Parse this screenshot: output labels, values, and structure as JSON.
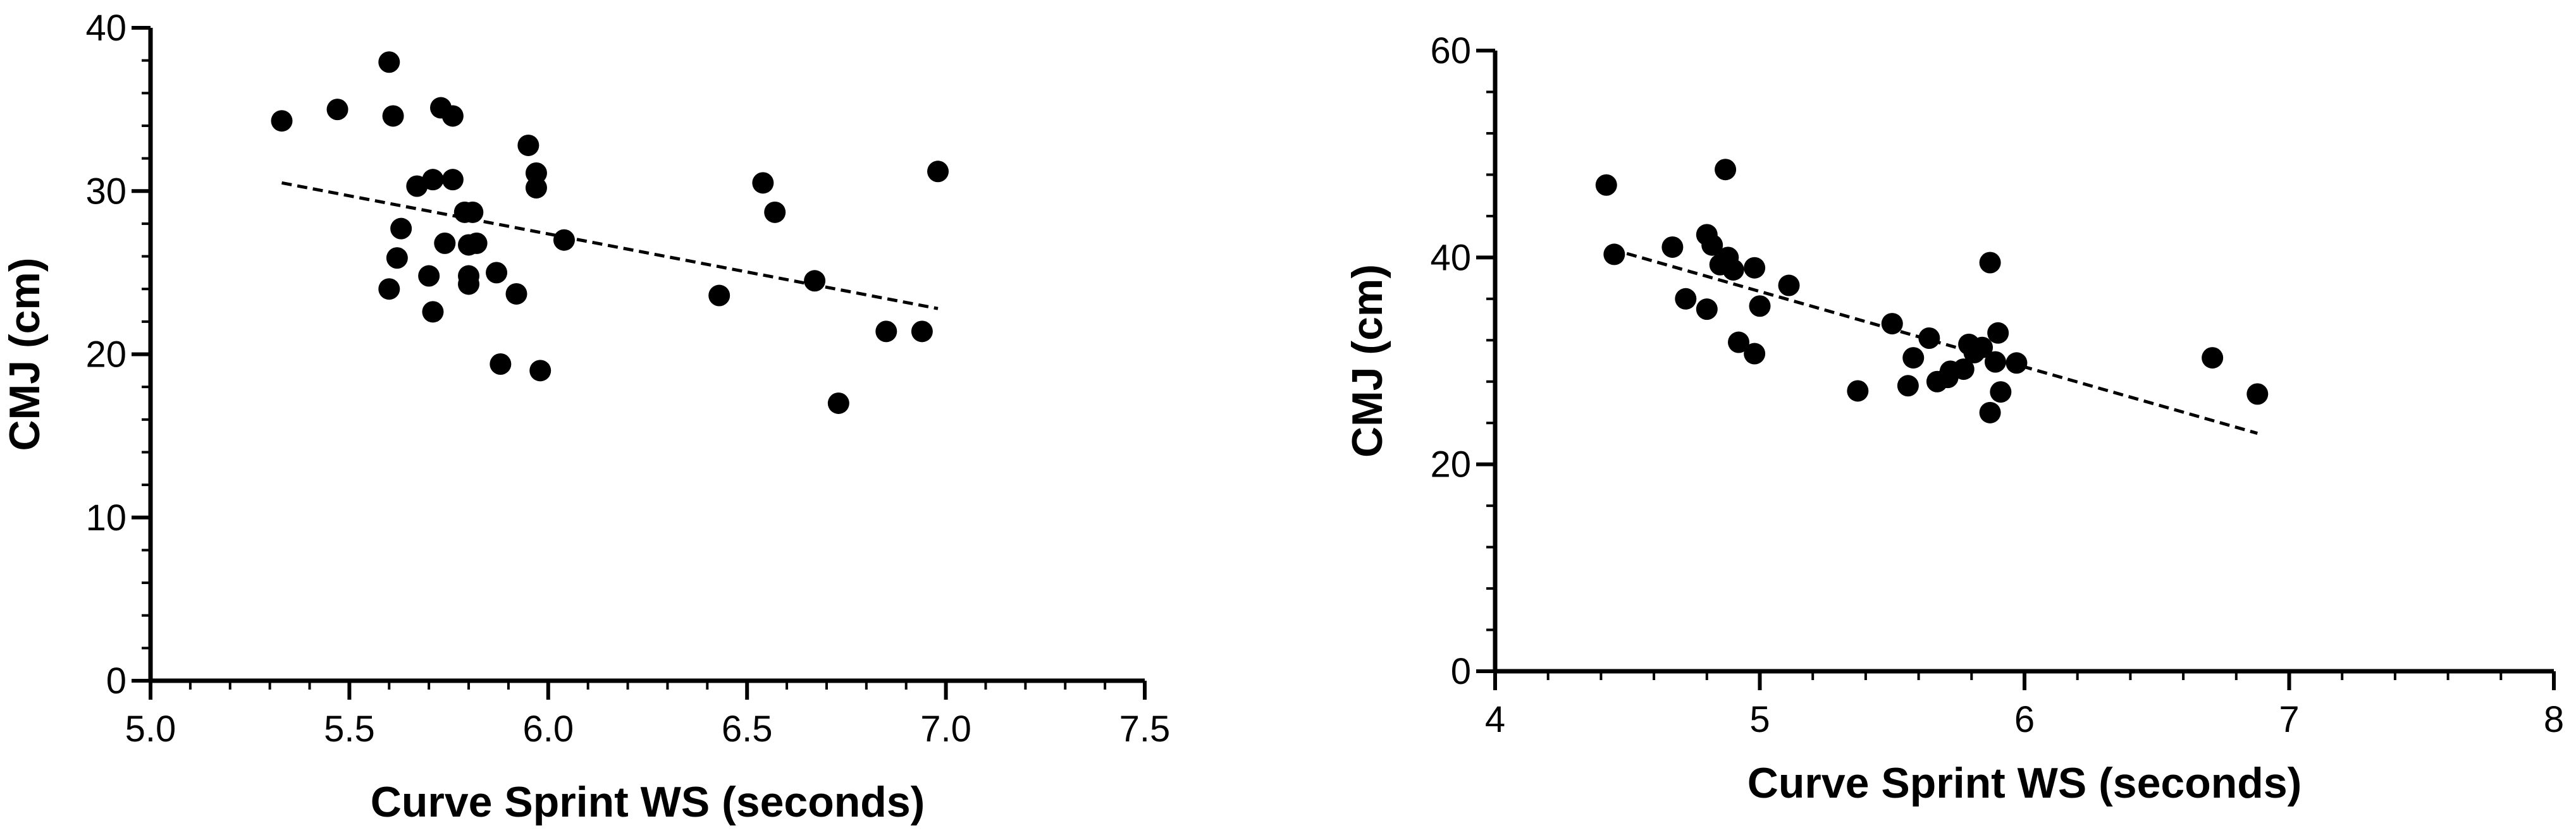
{
  "chart_data": [
    {
      "type": "scatter",
      "xlabel": "Curve Sprint WS (seconds)",
      "ylabel": "CMJ (cm)",
      "xlim": [
        5.0,
        7.5
      ],
      "ylim": [
        0,
        40
      ],
      "xticks": [
        "5.0",
        "5.5",
        "6.0",
        "6.5",
        "7.0",
        "7.5"
      ],
      "yticks": [
        "0",
        "10",
        "20",
        "30",
        "40"
      ],
      "x_minor_step": 0.1,
      "y_minor_step": 2,
      "grid": false,
      "trendline": {
        "style": "dashed",
        "x": [
          5.33,
          6.98
        ],
        "y": [
          30.5,
          22.8
        ]
      },
      "points": [
        [
          5.33,
          34.3
        ],
        [
          5.47,
          35.0
        ],
        [
          5.6,
          37.9
        ],
        [
          5.61,
          34.6
        ],
        [
          5.73,
          35.1
        ],
        [
          5.76,
          34.6
        ],
        [
          5.95,
          32.8
        ],
        [
          5.97,
          31.1
        ],
        [
          5.97,
          30.2
        ],
        [
          5.67,
          30.3
        ],
        [
          5.71,
          30.7
        ],
        [
          5.76,
          30.7
        ],
        [
          5.79,
          28.7
        ],
        [
          5.81,
          28.7
        ],
        [
          5.63,
          27.7
        ],
        [
          5.74,
          26.8
        ],
        [
          5.8,
          26.7
        ],
        [
          5.82,
          26.8
        ],
        [
          6.04,
          27.0
        ],
        [
          5.62,
          25.9
        ],
        [
          5.7,
          24.8
        ],
        [
          5.8,
          24.8
        ],
        [
          5.8,
          24.3
        ],
        [
          5.87,
          25.0
        ],
        [
          5.92,
          23.7
        ],
        [
          5.6,
          24.0
        ],
        [
          5.71,
          22.6
        ],
        [
          5.88,
          19.4
        ],
        [
          5.98,
          19.0
        ],
        [
          6.54,
          30.5
        ],
        [
          6.57,
          28.7
        ],
        [
          6.43,
          23.6
        ],
        [
          6.67,
          24.5
        ],
        [
          6.73,
          17.0
        ],
        [
          6.85,
          21.4
        ],
        [
          6.94,
          21.4
        ],
        [
          6.98,
          31.2
        ]
      ]
    },
    {
      "type": "scatter",
      "xlabel": "Curve Sprint WS (seconds)",
      "ylabel": "CMJ (cm)",
      "xlim": [
        4,
        8
      ],
      "ylim": [
        0,
        60
      ],
      "xticks": [
        "4",
        "5",
        "6",
        "7",
        "8"
      ],
      "yticks": [
        "0",
        "20",
        "40",
        "60"
      ],
      "x_minor_step": 0.2,
      "y_minor_step": 4,
      "grid": false,
      "trendline": {
        "style": "dashed",
        "x": [
          4.44,
          6.88
        ],
        "y": [
          40.8,
          23.0
        ]
      },
      "points": [
        [
          4.42,
          47.0
        ],
        [
          4.45,
          40.3
        ],
        [
          4.67,
          41.0
        ],
        [
          4.72,
          36.0
        ],
        [
          4.8,
          35.0
        ],
        [
          4.8,
          42.2
        ],
        [
          4.82,
          41.2
        ],
        [
          4.85,
          39.3
        ],
        [
          4.87,
          48.5
        ],
        [
          4.88,
          40.0
        ],
        [
          4.9,
          38.8
        ],
        [
          4.92,
          31.8
        ],
        [
          4.98,
          39.0
        ],
        [
          4.98,
          30.7
        ],
        [
          5.0,
          35.3
        ],
        [
          5.11,
          37.3
        ],
        [
          5.37,
          27.1
        ],
        [
          5.5,
          33.6
        ],
        [
          5.56,
          27.6
        ],
        [
          5.58,
          30.3
        ],
        [
          5.64,
          32.2
        ],
        [
          5.67,
          28.0
        ],
        [
          5.71,
          28.4
        ],
        [
          5.72,
          29.0
        ],
        [
          5.77,
          29.2
        ],
        [
          5.79,
          31.6
        ],
        [
          5.81,
          30.8
        ],
        [
          5.84,
          31.3
        ],
        [
          5.87,
          25.0
        ],
        [
          5.87,
          39.5
        ],
        [
          5.89,
          29.9
        ],
        [
          5.9,
          32.7
        ],
        [
          5.91,
          27.0
        ],
        [
          5.97,
          29.8
        ],
        [
          6.71,
          30.3
        ],
        [
          6.88,
          26.8
        ]
      ]
    }
  ]
}
